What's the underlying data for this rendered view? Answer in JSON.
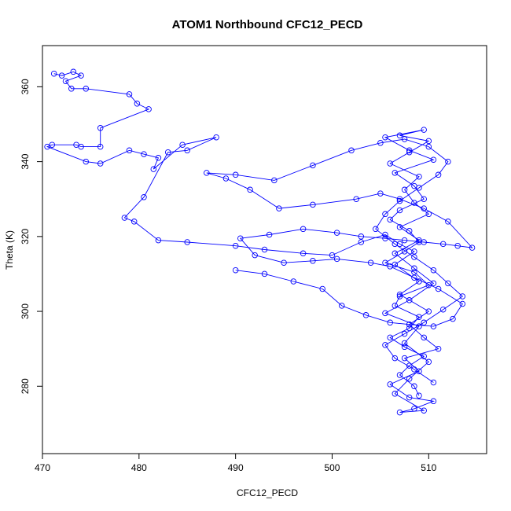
{
  "chart_data": {
    "type": "line",
    "title": "ATOM1 Northbound CFC12_PECD",
    "xlabel": "CFC12_PECD",
    "ylabel": "Theta (K)",
    "xlim": [
      470,
      516
    ],
    "ylim": [
      262,
      371
    ],
    "xticks": [
      470,
      480,
      490,
      500,
      510
    ],
    "yticks": [
      280,
      300,
      320,
      340,
      360
    ],
    "grid": false,
    "series": [
      {
        "markers": "open-circle",
        "color": "#0000ff",
        "x": [
          471.2,
          472.0,
          473.2,
          474.0,
          472.4,
          473.0,
          474.5,
          479.0,
          479.8,
          481.0,
          476.0,
          476.0,
          474.0,
          473.5,
          471.0,
          470.5,
          474.5,
          476.0,
          479.0,
          480.5,
          482.0,
          481.5,
          484.5,
          488.0,
          485.0,
          483.0,
          480.5,
          478.5,
          479.5,
          482.0,
          485.0,
          490.0,
          493.0,
          497.0,
          500.0,
          503.0,
          505.5,
          507.0,
          508.5,
          506.5,
          509.0,
          507.0,
          510.0,
          508.0,
          509.5,
          511.0,
          507.5,
          509.0,
          506.0,
          508.0,
          510.5,
          508.5,
          507.0,
          509.5,
          506.5,
          508.0,
          510.0,
          507.5,
          509.0,
          505.5,
          508.0,
          510.5,
          508.5,
          506.5,
          509.0,
          507.0,
          510.0,
          508.5,
          507.5,
          509.0,
          506.0,
          508.0,
          510.0,
          507.0,
          509.5,
          505.5,
          508.0,
          510.5,
          506.5,
          508.5,
          509.5,
          507.0,
          506.0,
          508.0,
          509.0,
          507.5,
          505.5,
          508.5,
          510.0,
          507.0,
          506.5,
          509.0,
          508.0,
          506.0,
          507.5,
          509.5,
          508.0,
          507.0,
          508.5,
          509.0
        ],
        "y": [
          363.5,
          363.0,
          364.0,
          363.0,
          361.5,
          359.5,
          359.5,
          358.0,
          355.5,
          354.0,
          349.0,
          344.0,
          344.0,
          344.5,
          344.5,
          344.0,
          340.0,
          339.5,
          343.0,
          342.0,
          341.0,
          338.0,
          344.5,
          346.5,
          343.0,
          342.5,
          330.5,
          325.0,
          324.0,
          319.0,
          318.5,
          317.5,
          316.5,
          315.5,
          315.0,
          318.5,
          320.5,
          318.0,
          316.0,
          312.5,
          308.0,
          304.5,
          300.0,
          296.5,
          293.0,
          290.0,
          287.5,
          284.0,
          280.5,
          277.0,
          276.0,
          274.0,
          273.0,
          273.5,
          278.0,
          282.0,
          286.5,
          291.5,
          296.0,
          299.5,
          303.0,
          307.5,
          311.5,
          315.5,
          319.0,
          322.5,
          326.0,
          329.0,
          332.5,
          336.0,
          339.5,
          342.5,
          345.5,
          347.0,
          348.5,
          346.5,
          343.0,
          340.5,
          337.0,
          333.5,
          330.0,
          327.0,
          324.5,
          321.5,
          318.5,
          316.0,
          313.0,
          310.5,
          307.0,
          304.0,
          301.5,
          298.5,
          295.5,
          293.0,
          290.5,
          288.0,
          285.5,
          283.0,
          280.0,
          277.5
        ]
      },
      {
        "markers": "open-circle",
        "color": "#0000ff",
        "x": [
          490.0,
          493.0,
          496.0,
          499.0,
          501.0,
          503.5,
          506.0,
          508.0,
          510.5,
          512.5,
          513.5,
          511.0,
          508.5,
          506.0,
          504.0,
          500.5,
          498.0,
          495.0,
          492.0,
          490.5,
          493.5,
          497.0,
          500.5,
          503.0,
          505.5,
          507.5,
          509.5,
          511.5,
          513.0,
          514.5,
          512.0,
          509.5,
          507.0,
          505.0,
          502.5,
          498.0,
          494.5,
          491.5,
          489.0,
          487.0,
          490.0,
          494.0,
          498.0,
          502.0,
          505.0,
          507.5,
          510.0,
          512.0,
          511.0,
          509.0,
          507.0,
          505.5,
          504.5,
          506.5,
          508.5,
          510.5,
          512.0,
          513.5,
          511.5,
          509.5,
          507.5,
          505.5,
          506.5,
          508.5,
          510.5
        ],
        "y": [
          311.0,
          310.0,
          308.0,
          306.0,
          301.5,
          299.0,
          297.0,
          296.5,
          296.0,
          298.0,
          302.0,
          306.0,
          309.0,
          312.0,
          313.0,
          314.0,
          313.5,
          313.0,
          315.0,
          319.5,
          320.5,
          322.0,
          321.0,
          320.0,
          319.5,
          319.0,
          318.5,
          318.0,
          317.5,
          317.0,
          324.0,
          327.5,
          330.0,
          331.5,
          330.0,
          328.5,
          327.5,
          332.5,
          335.5,
          337.0,
          336.5,
          335.0,
          339.0,
          343.0,
          345.0,
          346.0,
          344.0,
          340.0,
          336.5,
          333.0,
          329.5,
          326.0,
          322.0,
          318.0,
          314.5,
          311.0,
          307.5,
          304.0,
          300.5,
          297.0,
          294.0,
          291.0,
          287.5,
          284.5,
          281.0
        ]
      }
    ]
  }
}
